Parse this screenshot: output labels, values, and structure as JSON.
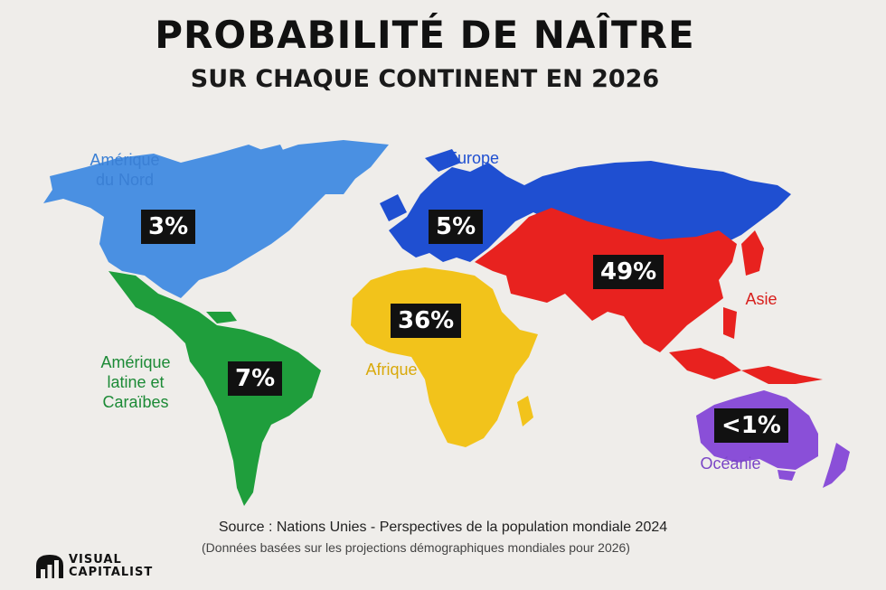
{
  "header": {
    "title": "PROBABILITÉ DE NAÎTRE",
    "subtitle": "SUR CHAQUE CONTINENT EN 2026"
  },
  "regions": {
    "north_america": {
      "name_line1": "Amérique",
      "name_line2": "du Nord",
      "share": "3%",
      "color": "#4a90e2"
    },
    "latin_america": {
      "name_line1": "Amérique",
      "name_line2": "latine et",
      "name_line3": "Caraïbes",
      "share": "7%",
      "color": "#1f9e3c"
    },
    "europe": {
      "name": "Europe",
      "share": "5%",
      "color": "#1f4fd1"
    },
    "africa": {
      "name": "Afrique",
      "share": "36%",
      "color": "#f2c31b"
    },
    "asia": {
      "name": "Asie",
      "share": "49%",
      "color": "#e8221f"
    },
    "oceania": {
      "name": "Océanie",
      "share": "<1%",
      "color": "#8a4fd8"
    }
  },
  "footer": {
    "source": "Source : Nations Unies - Perspectives de la population mondiale 2024",
    "note": "(Données basées sur les projections démographiques mondiales pour 2026)",
    "brand_line1": "VISUAL",
    "brand_line2": "CAPITALIST"
  }
}
